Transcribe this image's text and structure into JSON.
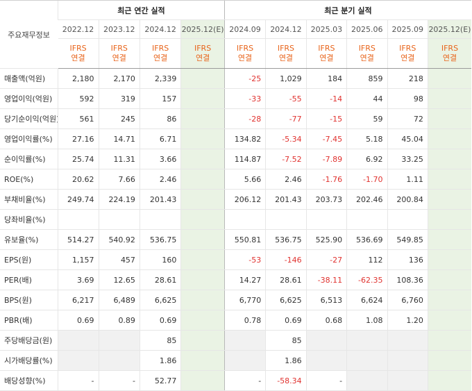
{
  "header": {
    "label": "주요재무정보",
    "annual_title": "최근 연간 실적",
    "quarter_title": "최근 분기 실적",
    "periods": [
      "2022.12",
      "2023.12",
      "2024.12",
      "2025.12(E)",
      "2024.09",
      "2024.12",
      "2025.03",
      "2025.06",
      "2025.09",
      "2025.12(E)"
    ],
    "basis_line1": "IFRS",
    "basis_line2": "연결"
  },
  "rows": [
    {
      "label": "매출액(억원)",
      "values": [
        "2,180",
        "2,170",
        "2,339",
        "",
        "-25",
        "1,029",
        "184",
        "859",
        "218",
        ""
      ]
    },
    {
      "label": "영업이익(억원)",
      "values": [
        "592",
        "319",
        "157",
        "",
        "-33",
        "-55",
        "-14",
        "44",
        "98",
        ""
      ]
    },
    {
      "label": "당기순이익(억원)",
      "values": [
        "561",
        "245",
        "86",
        "",
        "-28",
        "-77",
        "-15",
        "59",
        "72",
        ""
      ]
    },
    {
      "label": "영업이익률(%)",
      "values": [
        "27.16",
        "14.71",
        "6.71",
        "",
        "134.82",
        "-5.34",
        "-7.45",
        "5.18",
        "45.04",
        ""
      ]
    },
    {
      "label": "순이익률(%)",
      "values": [
        "25.74",
        "11.31",
        "3.66",
        "",
        "114.87",
        "-7.52",
        "-7.89",
        "6.92",
        "33.25",
        ""
      ]
    },
    {
      "label": "ROE(%)",
      "values": [
        "20.62",
        "7.66",
        "2.46",
        "",
        "5.66",
        "2.46",
        "-1.76",
        "-1.70",
        "1.11",
        ""
      ]
    },
    {
      "label": "부채비율(%)",
      "values": [
        "249.74",
        "224.19",
        "201.43",
        "",
        "206.12",
        "201.43",
        "203.73",
        "202.46",
        "200.84",
        ""
      ]
    },
    {
      "label": "당좌비율(%)",
      "values": [
        "",
        "",
        "",
        "",
        "",
        "",
        "",
        "",
        "",
        ""
      ]
    },
    {
      "label": "유보율(%)",
      "values": [
        "514.27",
        "540.92",
        "536.75",
        "",
        "550.81",
        "536.75",
        "525.90",
        "536.69",
        "549.85",
        ""
      ]
    },
    {
      "label": "EPS(원)",
      "values": [
        "1,157",
        "457",
        "160",
        "",
        "-53",
        "-146",
        "-27",
        "112",
        "136",
        ""
      ]
    },
    {
      "label": "PER(배)",
      "values": [
        "3.69",
        "12.65",
        "28.61",
        "",
        "14.27",
        "28.61",
        "-38.11",
        "-62.35",
        "108.36",
        ""
      ]
    },
    {
      "label": "BPS(원)",
      "values": [
        "6,217",
        "6,489",
        "6,625",
        "",
        "6,770",
        "6,625",
        "6,513",
        "6,624",
        "6,760",
        ""
      ]
    },
    {
      "label": "PBR(배)",
      "values": [
        "0.69",
        "0.89",
        "0.69",
        "",
        "0.78",
        "0.69",
        "0.68",
        "1.08",
        "1.20",
        ""
      ]
    },
    {
      "label": "주당배당금(원)",
      "values": [
        "",
        "",
        "85",
        "",
        "",
        "85",
        "",
        "",
        "",
        ""
      ]
    },
    {
      "label": "시가배당률(%)",
      "values": [
        "",
        "",
        "1.86",
        "",
        "",
        "1.86",
        "",
        "",
        "",
        ""
      ]
    },
    {
      "label": "배당성향(%)",
      "values": [
        "-",
        "-",
        "52.77",
        "",
        "-",
        "-58.34",
        "-",
        "",
        "",
        ""
      ]
    }
  ]
}
